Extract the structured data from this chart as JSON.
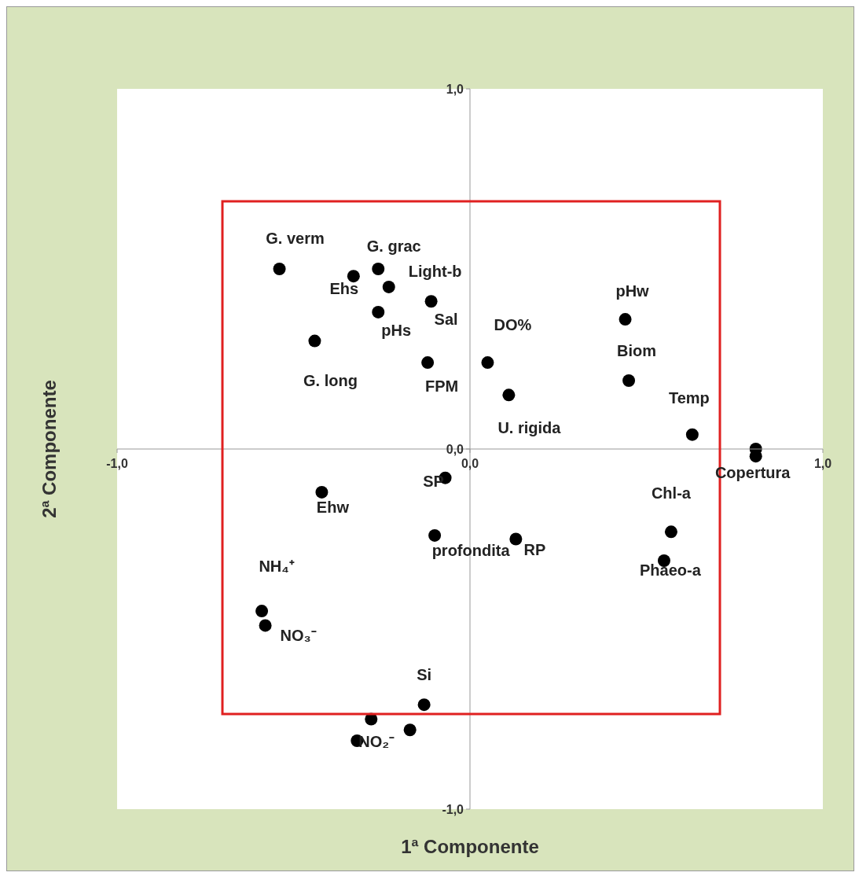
{
  "chart_data": {
    "type": "scatter",
    "xlabel": "1ª Componente",
    "ylabel": "2ª Componente",
    "marker": "circle",
    "xlim": [
      -1,
      1
    ],
    "ylim": [
      -1,
      1
    ],
    "xticks": [
      {
        "value": -1,
        "label": "-1,0"
      },
      {
        "value": 0,
        "label": "0,0"
      },
      {
        "value": 1,
        "label": "1,0"
      }
    ],
    "yticks": [
      {
        "value": -1,
        "label": "-1,0"
      },
      {
        "value": 0,
        "label": "0,0"
      },
      {
        "value": 1,
        "label": "1,0"
      }
    ],
    "series": [
      {
        "color": "#000000",
        "x": [
          -0.54,
          -0.33,
          -0.26,
          -0.23,
          -0.26,
          -0.11,
          -0.44,
          -0.12,
          0.05,
          0.11,
          0.44,
          0.45,
          0.63,
          0.81,
          0.81,
          -0.07,
          -0.42,
          -0.1,
          0.13,
          0.57,
          0.55,
          -0.59,
          -0.58,
          -0.13,
          -0.28,
          -0.17,
          -0.32
        ],
        "values": [
          0.5,
          0.48,
          0.5,
          0.45,
          0.38,
          0.41,
          0.3,
          0.24,
          0.24,
          0.15,
          0.36,
          0.19,
          0.04,
          0.0,
          -0.02,
          -0.08,
          -0.12,
          -0.24,
          -0.25,
          -0.23,
          -0.31,
          -0.45,
          -0.49,
          -0.71,
          -0.75,
          -0.78,
          -0.81
        ]
      }
    ],
    "annotations": [
      {
        "text": "G. verm",
        "x": -0.54,
        "y": 0.5
      },
      {
        "text": "G. grac",
        "x": -0.26,
        "y": 0.5
      },
      {
        "text": "Light-b",
        "x": -0.23,
        "y": 0.45
      },
      {
        "text": "Ehs",
        "x": -0.33,
        "y": 0.48
      },
      {
        "text": "Sal",
        "x": -0.11,
        "y": 0.41
      },
      {
        "text": "pHs",
        "x": -0.26,
        "y": 0.38
      },
      {
        "text": "DO%",
        "x": 0.05,
        "y": 0.24
      },
      {
        "text": "pHw",
        "x": 0.44,
        "y": 0.36
      },
      {
        "text": "Biom",
        "x": 0.45,
        "y": 0.19
      },
      {
        "text": "G. long",
        "x": -0.44,
        "y": 0.3
      },
      {
        "text": "FPM",
        "x": -0.12,
        "y": 0.24
      },
      {
        "text": "Temp",
        "x": 0.63,
        "y": 0.04
      },
      {
        "text": "U. rigida",
        "x": 0.11,
        "y": 0.15
      },
      {
        "text": "Copertura",
        "x": 0.81,
        "y": -0.02
      },
      {
        "text": "SP",
        "x": -0.07,
        "y": -0.08
      },
      {
        "text": "Chl-a",
        "x": 0.57,
        "y": -0.23
      },
      {
        "text": "Ehw",
        "x": -0.42,
        "y": -0.12
      },
      {
        "text": "profondita",
        "x": -0.1,
        "y": -0.24
      },
      {
        "text": "RP",
        "x": 0.13,
        "y": -0.25
      },
      {
        "text": "Phaeo-a",
        "x": 0.55,
        "y": -0.31
      },
      {
        "text": "NH₄⁺",
        "x": -0.59,
        "y": -0.45
      },
      {
        "text": "NO₃⁻",
        "x": -0.58,
        "y": -0.49
      },
      {
        "text": "Si",
        "x": -0.13,
        "y": -0.71
      },
      {
        "text": "NO₂⁻",
        "x": -0.32,
        "y": -0.81
      }
    ]
  }
}
